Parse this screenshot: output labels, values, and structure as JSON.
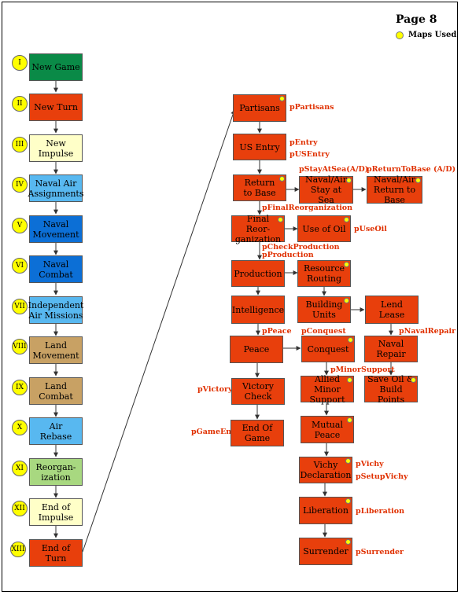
{
  "page_label": "Page 8",
  "legend_label": "Maps Used",
  "phases": [
    {
      "num": "I",
      "label": "New Game",
      "color": "#0a8a47"
    },
    {
      "num": "II",
      "label": "New Turn",
      "color": "#e83f0c"
    },
    {
      "num": "III",
      "label": "New Impulse",
      "color": "#ffffc8"
    },
    {
      "num": "IV",
      "label": "Naval Air\nAssignments",
      "color": "#58b8f0"
    },
    {
      "num": "V",
      "label": "Naval\nMovement",
      "color": "#0c6fd6"
    },
    {
      "num": "VI",
      "label": "Naval\nCombat",
      "color": "#0c6fd6"
    },
    {
      "num": "VII",
      "label": "Independent\nAir Missions",
      "color": "#58b8f0"
    },
    {
      "num": "VIII",
      "label": "Land\nMovement",
      "color": "#c8a164"
    },
    {
      "num": "IX",
      "label": "Land\nCombat",
      "color": "#c8a164"
    },
    {
      "num": "X",
      "label": "Air\nRebase",
      "color": "#58b8f0"
    },
    {
      "num": "XI",
      "label": "Reorgan-\nization",
      "color": "#a8d880"
    },
    {
      "num": "XII",
      "label": "End of\nImpulse",
      "color": "#ffffc8"
    },
    {
      "num": "XIII",
      "label": "End of Turn",
      "color": "#e83f0c"
    }
  ],
  "steps": {
    "partisans": "Partisans",
    "us_entry": "US Entry",
    "return_to_base": "Return\nto Base",
    "naval_air_stay": "Naval/Air\nStay at Sea",
    "naval_air_return": "Naval/Air\nReturn to Base",
    "final_reorg": "Final Reor-\nganization",
    "use_of_oil": "Use of Oil",
    "production": "Production",
    "resource_routing": "Resource\nRouting",
    "intelligence": "Intelligence",
    "building_units": "Building\nUnits",
    "lend_lease": "Lend Lease",
    "peace": "Peace",
    "conquest": "Conquest",
    "naval_repair": "Naval\nRepair",
    "victory_check": "Victory\nCheck",
    "allied_minor_support": "Allied Minor\nSupport",
    "save_oil": "Save Oil &\nBuild Points",
    "end_of_game": "End Of\nGame",
    "mutual_peace": "Mutual\nPeace",
    "vichy_declaration": "Vichy\nDeclaration",
    "liberation": "Liberation",
    "surrender": "Surrender"
  },
  "procedures": {
    "partisans": "pPartisans",
    "entry": "pEntry",
    "us_entry": "pUSEntry",
    "stay_at_sea": "pStayAtSea(A/D)",
    "return_to_base": "pReturnToBase (A/D)",
    "final_reorganization": "pFinalReorganization",
    "use_oil": "pUseOil",
    "check_production": "pCheckProduction",
    "production": "pProduction",
    "peace": "pPeace",
    "conquest": "pConquest",
    "naval_repair": "pNavalRepair",
    "minor_support": "pMinorSupport",
    "victory": "pVictory",
    "game_end": "pGameEnd",
    "vichy": "pVichy",
    "setup_vichy": "pSetupVichy",
    "liberation": "pLiberation",
    "surrender": "pSurrender"
  }
}
